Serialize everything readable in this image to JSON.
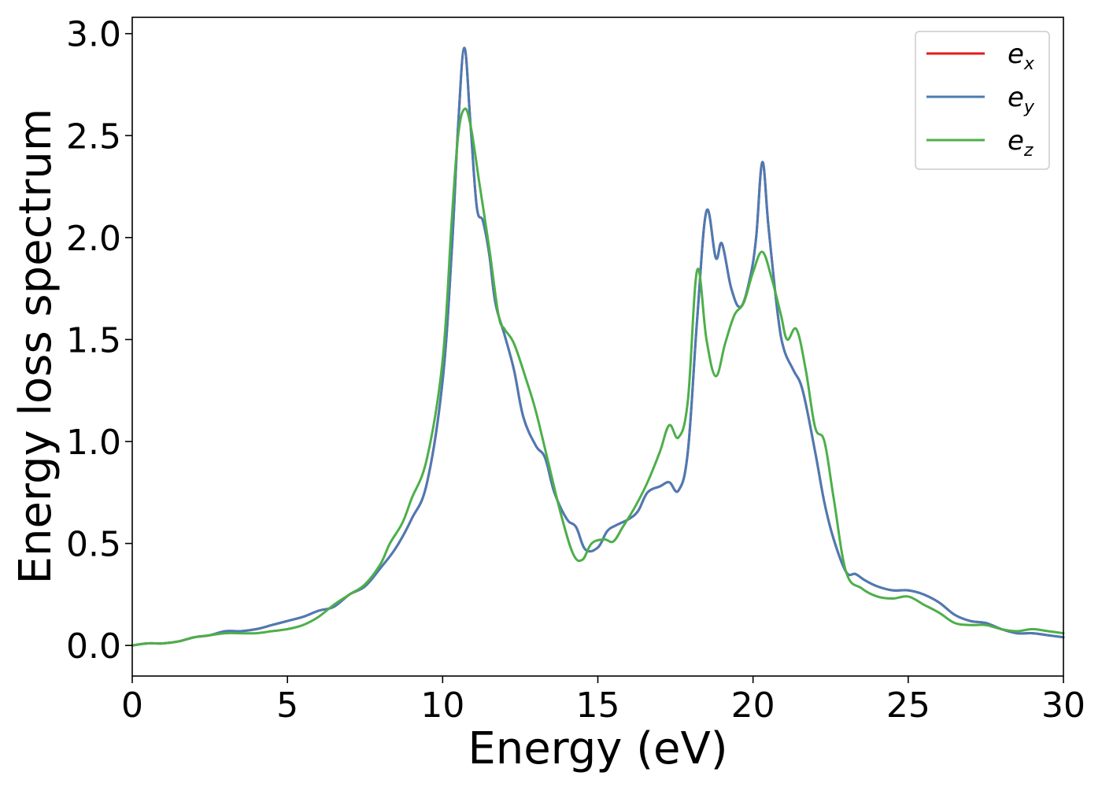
{
  "chart_data": {
    "type": "line",
    "xlabel": "Energy (eV)",
    "ylabel": "Energy loss spectrum",
    "xlim": [
      0,
      30
    ],
    "ylim": [
      -0.15,
      3.08
    ],
    "xticks": [
      0,
      5,
      10,
      15,
      20,
      25,
      30
    ],
    "xtick_labels": [
      "0",
      "5",
      "10",
      "15",
      "20",
      "25",
      "30"
    ],
    "yticks": [
      0.0,
      0.5,
      1.0,
      1.5,
      2.0,
      2.5,
      3.0
    ],
    "ytick_labels": [
      "0.0",
      "0.5",
      "1.0",
      "1.5",
      "2.0",
      "2.5",
      "3.0"
    ],
    "grid": false,
    "legend_position": "top-right",
    "series": [
      {
        "name": "e_x",
        "legend_base": "e",
        "legend_sub": "x",
        "color": "#e41a1c",
        "x": [
          0,
          0.5,
          1,
          1.5,
          2,
          2.5,
          3,
          3.5,
          4,
          4.5,
          5,
          5.5,
          6,
          6.5,
          7,
          7.5,
          8,
          8.5,
          9,
          9.5,
          10,
          10.3,
          10.5,
          10.7,
          10.9,
          11.1,
          11.3,
          11.5,
          11.7,
          12,
          12.3,
          12.6,
          13,
          13.3,
          13.6,
          14,
          14.3,
          14.6,
          15,
          15.3,
          15.6,
          16,
          16.3,
          16.6,
          17,
          17.3,
          17.6,
          17.9,
          18.2,
          18.5,
          18.8,
          19,
          19.3,
          19.6,
          19.9,
          20.1,
          20.3,
          20.5,
          20.8,
          21,
          21.3,
          21.6,
          22,
          22.3,
          22.6,
          23,
          23.3,
          23.6,
          24,
          24.5,
          25,
          25.5,
          26,
          26.5,
          27,
          27.5,
          28,
          28.5,
          29,
          29.5,
          30
        ],
        "y": [
          0,
          0.01,
          0.01,
          0.02,
          0.04,
          0.05,
          0.07,
          0.07,
          0.08,
          0.1,
          0.12,
          0.14,
          0.17,
          0.19,
          0.25,
          0.29,
          0.38,
          0.48,
          0.62,
          0.8,
          1.3,
          1.95,
          2.55,
          2.93,
          2.55,
          2.15,
          2.08,
          1.92,
          1.68,
          1.52,
          1.35,
          1.12,
          0.98,
          0.92,
          0.75,
          0.62,
          0.58,
          0.47,
          0.48,
          0.56,
          0.59,
          0.62,
          0.66,
          0.75,
          0.78,
          0.8,
          0.76,
          0.95,
          1.6,
          2.13,
          1.9,
          1.97,
          1.75,
          1.66,
          1.8,
          2.0,
          2.37,
          2.05,
          1.62,
          1.45,
          1.35,
          1.25,
          0.95,
          0.7,
          0.52,
          0.36,
          0.35,
          0.32,
          0.29,
          0.27,
          0.27,
          0.25,
          0.21,
          0.15,
          0.12,
          0.11,
          0.08,
          0.06,
          0.06,
          0.05,
          0.04
        ]
      },
      {
        "name": "e_y",
        "legend_base": "e",
        "legend_sub": "y",
        "color": "#4a7bb5",
        "x": [
          0,
          0.5,
          1,
          1.5,
          2,
          2.5,
          3,
          3.5,
          4,
          4.5,
          5,
          5.5,
          6,
          6.5,
          7,
          7.5,
          8,
          8.5,
          9,
          9.5,
          10,
          10.3,
          10.5,
          10.7,
          10.9,
          11.1,
          11.3,
          11.5,
          11.7,
          12,
          12.3,
          12.6,
          13,
          13.3,
          13.6,
          14,
          14.3,
          14.6,
          15,
          15.3,
          15.6,
          16,
          16.3,
          16.6,
          17,
          17.3,
          17.6,
          17.9,
          18.2,
          18.5,
          18.8,
          19,
          19.3,
          19.6,
          19.9,
          20.1,
          20.3,
          20.5,
          20.8,
          21,
          21.3,
          21.6,
          22,
          22.3,
          22.6,
          23,
          23.3,
          23.6,
          24,
          24.5,
          25,
          25.5,
          26,
          26.5,
          27,
          27.5,
          28,
          28.5,
          29,
          29.5,
          30
        ],
        "y": [
          0,
          0.01,
          0.01,
          0.02,
          0.04,
          0.05,
          0.07,
          0.07,
          0.08,
          0.1,
          0.12,
          0.14,
          0.17,
          0.19,
          0.25,
          0.29,
          0.38,
          0.48,
          0.62,
          0.8,
          1.3,
          1.95,
          2.55,
          2.93,
          2.55,
          2.15,
          2.08,
          1.92,
          1.68,
          1.52,
          1.35,
          1.12,
          0.98,
          0.92,
          0.75,
          0.62,
          0.58,
          0.47,
          0.48,
          0.56,
          0.59,
          0.62,
          0.66,
          0.75,
          0.78,
          0.8,
          0.76,
          0.95,
          1.6,
          2.13,
          1.9,
          1.97,
          1.75,
          1.66,
          1.8,
          2.0,
          2.37,
          2.05,
          1.62,
          1.45,
          1.35,
          1.25,
          0.95,
          0.7,
          0.52,
          0.36,
          0.35,
          0.32,
          0.29,
          0.27,
          0.27,
          0.25,
          0.21,
          0.15,
          0.12,
          0.11,
          0.08,
          0.06,
          0.06,
          0.05,
          0.04
        ]
      },
      {
        "name": "e_z",
        "legend_base": "e",
        "legend_sub": "z",
        "color": "#4daf4a",
        "x": [
          0,
          0.5,
          1,
          1.5,
          2,
          2.5,
          3,
          3.5,
          4,
          4.5,
          5,
          5.5,
          6,
          6.5,
          7,
          7.5,
          8,
          8.3,
          8.7,
          9,
          9.5,
          10,
          10.3,
          10.5,
          10.7,
          10.9,
          11.2,
          11.5,
          11.8,
          12,
          12.3,
          12.7,
          13,
          13.4,
          13.8,
          14.2,
          14.5,
          14.8,
          15.2,
          15.5,
          15.8,
          16.2,
          16.6,
          17,
          17.3,
          17.6,
          17.9,
          18.2,
          18.5,
          18.8,
          19.1,
          19.4,
          19.7,
          20,
          20.3,
          20.6,
          20.9,
          21.1,
          21.4,
          21.7,
          22,
          22.3,
          22.6,
          23,
          23.5,
          24,
          24.5,
          25,
          25.5,
          26,
          26.5,
          27,
          27.5,
          28,
          28.5,
          29,
          29.5,
          30
        ],
        "y": [
          0,
          0.01,
          0.01,
          0.02,
          0.04,
          0.05,
          0.06,
          0.06,
          0.06,
          0.07,
          0.08,
          0.1,
          0.14,
          0.2,
          0.25,
          0.3,
          0.4,
          0.5,
          0.6,
          0.72,
          0.92,
          1.4,
          2.1,
          2.5,
          2.63,
          2.55,
          2.25,
          1.95,
          1.62,
          1.55,
          1.48,
          1.3,
          1.15,
          0.9,
          0.65,
          0.45,
          0.42,
          0.5,
          0.52,
          0.51,
          0.58,
          0.68,
          0.8,
          0.95,
          1.08,
          1.02,
          1.2,
          1.84,
          1.5,
          1.32,
          1.48,
          1.62,
          1.68,
          1.83,
          1.93,
          1.8,
          1.62,
          1.5,
          1.55,
          1.35,
          1.07,
          1.0,
          0.72,
          0.36,
          0.28,
          0.24,
          0.23,
          0.24,
          0.2,
          0.16,
          0.11,
          0.1,
          0.1,
          0.08,
          0.07,
          0.08,
          0.07,
          0.06
        ]
      }
    ]
  }
}
